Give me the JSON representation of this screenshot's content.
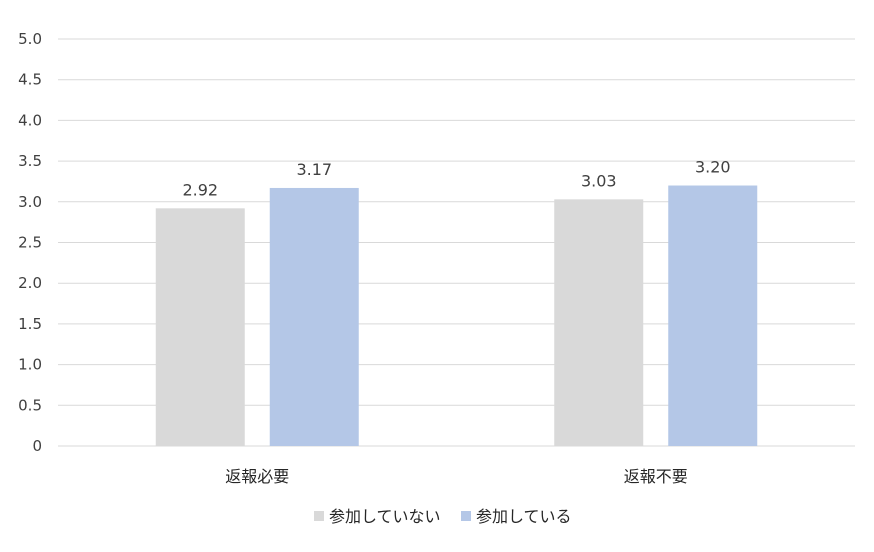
{
  "chart_data": {
    "type": "bar",
    "title": "",
    "xlabel": "",
    "ylabel": "",
    "ylim": [
      0,
      5.0
    ],
    "yticks": [
      "0",
      "0.5",
      "1.0",
      "1.5",
      "2.0",
      "2.5",
      "3.0",
      "3.5",
      "4.0",
      "4.5",
      "5.0"
    ],
    "grid": true,
    "legend_position": "bottom",
    "categories": [
      "返報必要",
      "返報不要"
    ],
    "series": [
      {
        "name": "参加していない",
        "values": [
          2.92,
          3.03
        ],
        "labels": [
          "2.92",
          "3.03"
        ],
        "color": "#d9d9d9"
      },
      {
        "name": "参加している",
        "values": [
          3.17,
          3.2
        ],
        "labels": [
          "3.17",
          "3.20"
        ],
        "color": "#b4c7e7"
      }
    ]
  }
}
